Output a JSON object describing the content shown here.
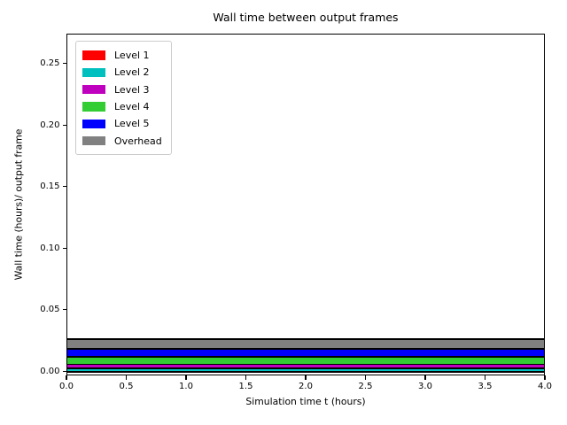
{
  "figure": {
    "title": "Wall time between output frames",
    "xlabel": "Simulation time t (hours)",
    "ylabel": "Wall time (hours)/ output frame"
  },
  "axes": {
    "xtick_labels": [
      "0.0",
      "0.5",
      "1.0",
      "1.5",
      "2.0",
      "2.5",
      "3.0",
      "3.5",
      "4.0"
    ],
    "xtick_values": [
      0.0,
      0.5,
      1.0,
      1.5,
      2.0,
      2.5,
      3.0,
      3.5,
      4.0
    ],
    "ytick_labels": [
      "0.00",
      "0.05",
      "0.10",
      "0.15",
      "0.20",
      "0.25"
    ],
    "ytick_values": [
      0.0,
      0.05,
      0.1,
      0.15,
      0.2,
      0.25
    ]
  },
  "legend": {
    "entries": [
      {
        "label": "Level 1",
        "color": "#ff0000"
      },
      {
        "label": "Level 2",
        "color": "#00bfbf"
      },
      {
        "label": "Level 3",
        "color": "#bf00bf"
      },
      {
        "label": "Level 4",
        "color": "#32cd32"
      },
      {
        "label": "Level 5",
        "color": "#0000ff"
      },
      {
        "label": "Overhead",
        "color": "#808080"
      }
    ]
  },
  "chart_data": {
    "type": "area",
    "stacked": true,
    "title": "Wall time between output frames",
    "xlabel": "Simulation time t (hours)",
    "ylabel": "Wall time (hours)/ output frame",
    "x": [
      0.0,
      4.0
    ],
    "series": [
      {
        "name": "Level 1",
        "color": "#ff0000",
        "values": [
          0.0006,
          0.0006
        ]
      },
      {
        "name": "Level 2",
        "color": "#00bfbf",
        "values": [
          0.0024,
          0.0024
        ]
      },
      {
        "name": "Level 3",
        "color": "#bf00bf",
        "values": [
          0.0034,
          0.0034
        ]
      },
      {
        "name": "Level 4",
        "color": "#32cd32",
        "values": [
          0.0063,
          0.0063
        ]
      },
      {
        "name": "Level 5",
        "color": "#0000ff",
        "values": [
          0.0065,
          0.0065
        ]
      },
      {
        "name": "Overhead",
        "color": "#808080",
        "values": [
          0.0075,
          0.0075
        ]
      }
    ],
    "stack_total_approx": 0.0267,
    "xlim": [
      0.0,
      4.0
    ],
    "ylim": [
      -0.005,
      0.275
    ],
    "xticks": [
      0.0,
      0.5,
      1.0,
      1.5,
      2.0,
      2.5,
      3.0,
      3.5,
      4.0
    ],
    "yticks": [
      0.0,
      0.05,
      0.1,
      0.15,
      0.2,
      0.25
    ],
    "band_edge_color": "#000000",
    "legend_position": "upper left",
    "grid": false,
    "note": "All series are approximately constant across simulation time; thin stacked bands with black edges hug the x-axis."
  }
}
